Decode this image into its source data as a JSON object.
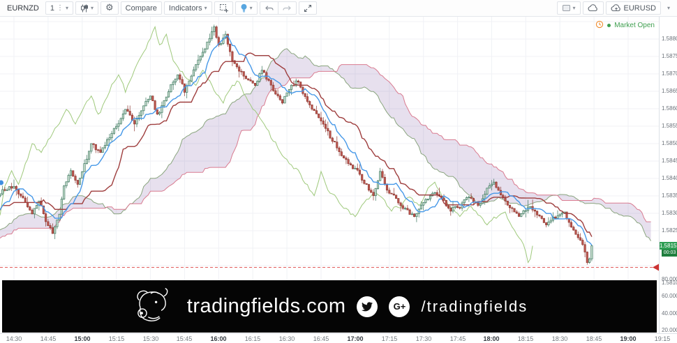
{
  "toolbar": {
    "symbol": "EURNZD",
    "interval": "1",
    "compare_label": "Compare",
    "indicators_label": "Indicators",
    "layout_name": "EURUSD"
  },
  "status": {
    "market_label": "Market Open"
  },
  "banner": {
    "site": "tradingfields.com",
    "handle": "/tradingfields",
    "gplus": "G+"
  },
  "chart_data": {
    "type": "candlestick",
    "symbol": "EURNZD",
    "interval_minutes": 1,
    "overlay": "Ichimoku Cloud (9, 26, 52, 26)",
    "last_price": "1.58157",
    "countdown": "00:03",
    "alert_price": 1.58095,
    "price_axis_ticks": [
      "1.58800",
      "1.58750",
      "1.58700",
      "1.58650",
      "1.58600",
      "1.58550",
      "1.58500",
      "1.58450",
      "1.58400",
      "1.58350",
      "1.58300",
      "1.58250",
      "1.58200",
      "1.58100"
    ],
    "lower_pane_ticks": [
      "80.0000",
      "60.0000",
      "40.0000",
      "20.0000"
    ],
    "time_ticks": [
      {
        "m": 0,
        "label": "14:30",
        "bold": false
      },
      {
        "m": 15,
        "label": "14:45",
        "bold": false
      },
      {
        "m": 30,
        "label": "15:00",
        "bold": true
      },
      {
        "m": 45,
        "label": "15:15",
        "bold": false
      },
      {
        "m": 60,
        "label": "15:30",
        "bold": false
      },
      {
        "m": 75,
        "label": "15:45",
        "bold": false
      },
      {
        "m": 90,
        "label": "16:00",
        "bold": true
      },
      {
        "m": 105,
        "label": "16:15",
        "bold": false
      },
      {
        "m": 120,
        "label": "16:30",
        "bold": false
      },
      {
        "m": 135,
        "label": "16:45",
        "bold": false
      },
      {
        "m": 150,
        "label": "17:00",
        "bold": true
      },
      {
        "m": 165,
        "label": "17:15",
        "bold": false
      },
      {
        "m": 180,
        "label": "17:30",
        "bold": false
      },
      {
        "m": 195,
        "label": "17:45",
        "bold": false
      },
      {
        "m": 210,
        "label": "18:00",
        "bold": true
      },
      {
        "m": 225,
        "label": "18:15",
        "bold": false
      },
      {
        "m": 240,
        "label": "18:30",
        "bold": false
      },
      {
        "m": 255,
        "label": "18:45",
        "bold": false
      },
      {
        "m": 270,
        "label": "19:00",
        "bold": true
      },
      {
        "m": 285,
        "label": "19:15",
        "bold": false
      }
    ],
    "ichimoku": {
      "conversion": 9,
      "base": 26,
      "lead": 52,
      "displacement": 26
    },
    "seed": 11,
    "noise": {
      "body": 0.0001,
      "wick_max": 0.00022
    },
    "prehistory_start": -96,
    "visible_start_minute": -6,
    "end_minute": 254,
    "price_top": 1.588,
    "price_step": 0.0005,
    "anchors": [
      [
        -96,
        1.5818
      ],
      [
        -84,
        1.5811
      ],
      [
        -72,
        1.5822
      ],
      [
        -60,
        1.5814
      ],
      [
        -48,
        1.5825
      ],
      [
        -36,
        1.5819
      ],
      [
        -24,
        1.5828
      ],
      [
        -14,
        1.5822
      ],
      [
        -6,
        1.5831
      ],
      [
        0,
        1.5833
      ],
      [
        4,
        1.5829
      ],
      [
        8,
        1.5825
      ],
      [
        11,
        1.5829
      ],
      [
        14,
        1.5823
      ],
      [
        17,
        1.58195
      ],
      [
        20,
        1.5825
      ],
      [
        22,
        1.5833
      ],
      [
        25,
        1.5837
      ],
      [
        28,
        1.5833
      ],
      [
        31,
        1.5839
      ],
      [
        34,
        1.5845
      ],
      [
        38,
        1.5842
      ],
      [
        41,
        1.5846
      ],
      [
        45,
        1.585
      ],
      [
        49,
        1.5855
      ],
      [
        53,
        1.5851
      ],
      [
        57,
        1.5856
      ],
      [
        60,
        1.5859
      ],
      [
        63,
        1.5853
      ],
      [
        66,
        1.5857
      ],
      [
        69,
        1.5862
      ],
      [
        72,
        1.5865
      ],
      [
        75,
        1.586
      ],
      [
        79,
        1.5866
      ],
      [
        83,
        1.5871
      ],
      [
        86,
        1.5875
      ],
      [
        88,
        1.58785
      ],
      [
        90,
        1.5873
      ],
      [
        93,
        1.5876
      ],
      [
        96,
        1.5869
      ],
      [
        99,
        1.5866
      ],
      [
        103,
        1.5863
      ],
      [
        106,
        1.5862
      ],
      [
        109,
        1.5866
      ],
      [
        112,
        1.5863
      ],
      [
        115,
        1.5859
      ],
      [
        118,
        1.5857
      ],
      [
        121,
        1.5861
      ],
      [
        125,
        1.5863
      ],
      [
        128,
        1.5858
      ],
      [
        131,
        1.5855
      ],
      [
        135,
        1.5852
      ],
      [
        139,
        1.5847
      ],
      [
        143,
        1.5843
      ],
      [
        147,
        1.5839
      ],
      [
        151,
        1.5837
      ],
      [
        155,
        1.5833
      ],
      [
        158,
        1.583
      ],
      [
        161,
        1.5837
      ],
      [
        164,
        1.5832
      ],
      [
        168,
        1.5829
      ],
      [
        172,
        1.5826
      ],
      [
        176,
        1.5824
      ],
      [
        180,
        1.5828
      ],
      [
        184,
        1.5831
      ],
      [
        188,
        1.5829
      ],
      [
        192,
        1.5826
      ],
      [
        196,
        1.5827
      ],
      [
        200,
        1.583
      ],
      [
        204,
        1.5827
      ],
      [
        208,
        1.5832
      ],
      [
        211,
        1.5834
      ],
      [
        214,
        1.583
      ],
      [
        218,
        1.5827
      ],
      [
        222,
        1.5824
      ],
      [
        226,
        1.5827
      ],
      [
        230,
        1.5825
      ],
      [
        234,
        1.5822
      ],
      [
        238,
        1.5824
      ],
      [
        242,
        1.5825
      ],
      [
        245,
        1.5821
      ],
      [
        248,
        1.5818
      ],
      [
        250,
        1.5816
      ],
      [
        252,
        1.5811
      ],
      [
        253,
        1.5812
      ],
      [
        254,
        1.58157
      ]
    ],
    "colors": {
      "grid": "#f0f2f6",
      "up_fill": "#cfe3d4",
      "up_stroke": "#37735a",
      "down_fill": "#c05a52",
      "down_stroke": "#8d352f",
      "tenkan": "#4698e8",
      "kijun": "#9e3d3d",
      "chikou": "#9fc97c",
      "lead1": "#8aa57f",
      "lead2": "#d97b90",
      "cloud_fill": "rgba(123,84,161,0.18)",
      "alert_line": "#e25c5c",
      "alert_marker": "#cc3333",
      "badge_green": "#2e9e53"
    }
  }
}
